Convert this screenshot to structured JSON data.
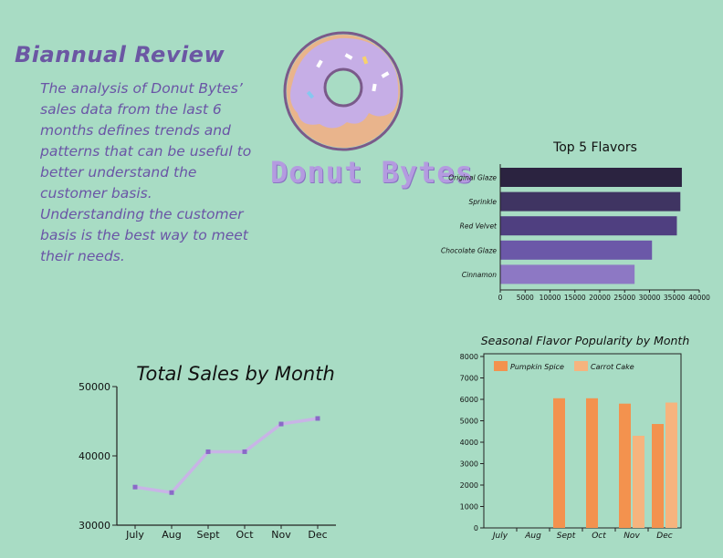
{
  "header": {
    "title": "Biannual Review",
    "body": "The analysis of Donut Bytes’ sales data from the last 6 months defines trends and patterns that can be useful to better understand the customer basis. Understanding the customer basis is the best way to meet their needs."
  },
  "logo": {
    "text": "Donut Bytes"
  },
  "colors": {
    "background": "#a8dcc4",
    "accent": "#6b57a3",
    "pumpkin": "#f3924e",
    "carrot": "#f6b47e",
    "line": "#c8b4e6"
  },
  "chart_data": [
    {
      "type": "bar",
      "orientation": "horizontal",
      "title": "Top 5 Flavors",
      "categories": [
        "Original Glaze",
        "Sprinkle",
        "Red Velvet",
        "Chocolate Glaze",
        "Cinnamon"
      ],
      "values": [
        36500,
        36200,
        35500,
        30500,
        27000
      ],
      "xlim": [
        0,
        40000
      ],
      "xticks": [
        "0",
        "5000",
        "10000",
        "15000",
        "20000",
        "25000",
        "30000",
        "35000",
        "40000"
      ],
      "colors": [
        "#2b2340",
        "#3f3462",
        "#4f3f80",
        "#6b58a8",
        "#8d78c4"
      ],
      "grid": false
    },
    {
      "type": "line",
      "title": "Total Sales by Month",
      "categories": [
        "July",
        "Aug",
        "Sept",
        "Oct",
        "Nov",
        "Dec"
      ],
      "values": [
        35500,
        34700,
        40600,
        40600,
        44600,
        45400
      ],
      "ylim": [
        30000,
        50000
      ],
      "yticks": [
        "30000",
        "40000",
        "50000"
      ],
      "grid": false
    },
    {
      "type": "bar",
      "title": "Seasonal Flavor Popularity by Month",
      "categories": [
        "July",
        "Aug",
        "Sept",
        "Oct",
        "Nov",
        "Dec"
      ],
      "series": [
        {
          "name": "Pumpkin Spice",
          "values": [
            0,
            0,
            6050,
            6050,
            5800,
            4850
          ]
        },
        {
          "name": "Carrot Cake",
          "values": [
            0,
            0,
            0,
            0,
            4300,
            5850
          ]
        }
      ],
      "ylim": [
        0,
        8000
      ],
      "yticks": [
        "0",
        "1000",
        "2000",
        "3000",
        "4000",
        "5000",
        "6000",
        "7000",
        "8000"
      ],
      "legend": "top-left",
      "grid": false
    }
  ]
}
